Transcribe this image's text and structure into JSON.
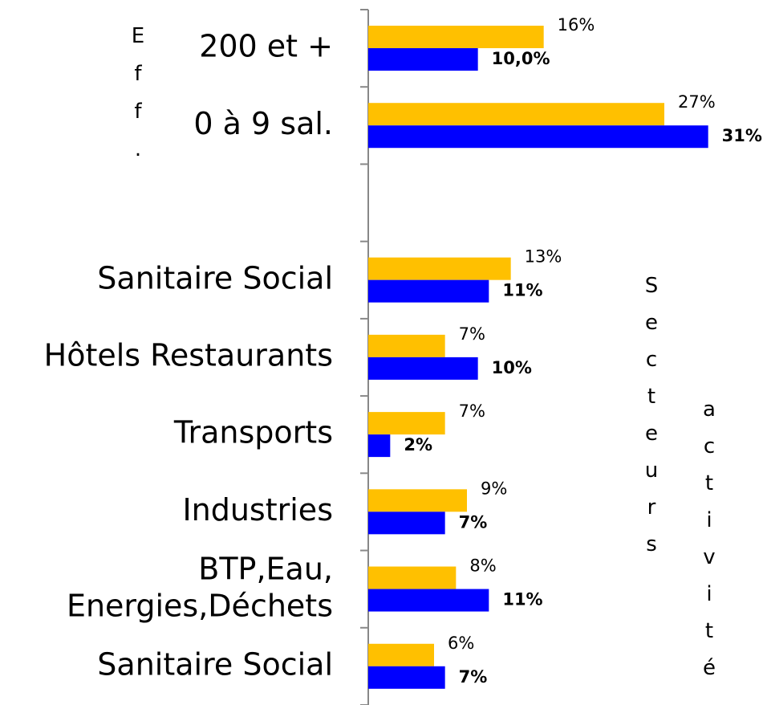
{
  "chart_data": {
    "type": "hbar",
    "categories": [
      "200 et +",
      "0 à 9 sal.",
      null,
      "Sanitaire Social",
      "Hôtels Restaurants",
      "Transports",
      "Industries",
      "BTP,Eau,\nEnergies,Déchets",
      "Sanitaire Social"
    ],
    "series": [
      {
        "color": "#FFC000",
        "values": [
          16,
          27,
          null,
          13,
          7,
          7,
          9,
          8,
          6
        ],
        "value_labels": [
          "16%",
          "27%",
          null,
          "13%",
          "7%",
          "7%",
          "9%",
          "8%",
          "6%"
        ]
      },
      {
        "color": "#0000FF",
        "values": [
          10,
          31,
          null,
          11,
          10,
          2,
          7,
          11,
          7
        ],
        "value_labels": [
          "10,0%",
          "31%",
          null,
          "11%",
          "10%",
          "2%",
          "7%",
          "11%",
          "7%"
        ]
      }
    ],
    "xlim": [
      0,
      36
    ],
    "annotations": [
      "Eff.",
      "Secteurs",
      "activité"
    ]
  }
}
